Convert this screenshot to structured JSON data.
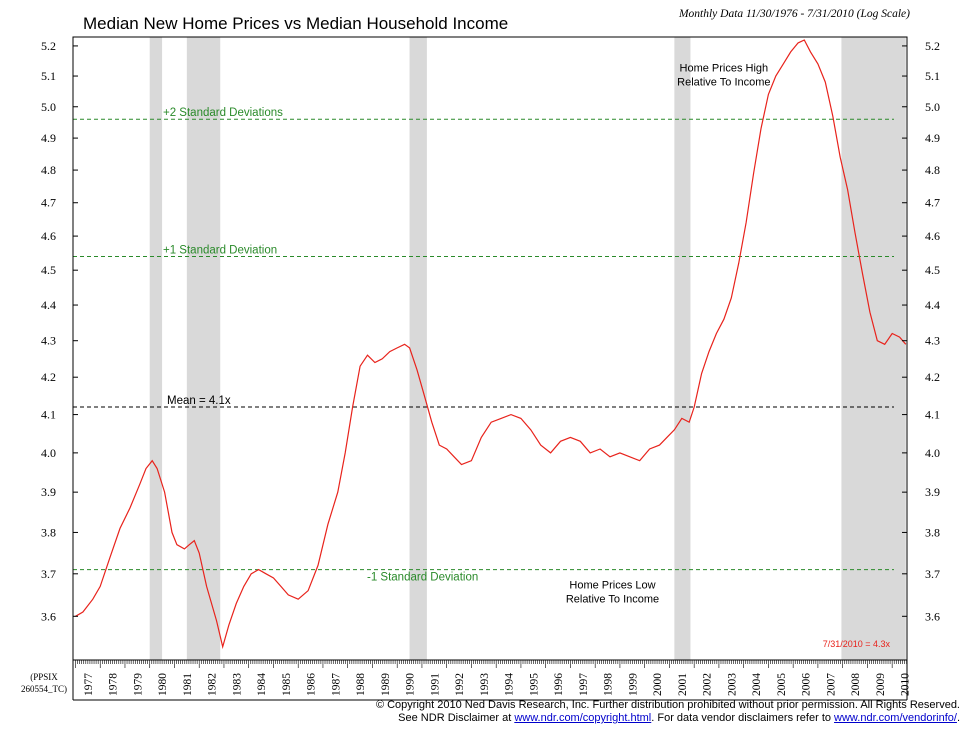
{
  "chart_data": {
    "type": "line",
    "title": "Median New Home Prices vs Median Household Income",
    "subtitle": "Monthly Data 11/30/1976 - 7/31/2010 (Log Scale)",
    "code_label": [
      "(PPSIX",
      "260554_TC)"
    ],
    "y_ticks": [
      "3.6",
      "3.7",
      "3.8",
      "3.9",
      "4.0",
      "4.1",
      "4.2",
      "4.3",
      "4.4",
      "4.5",
      "4.6",
      "4.7",
      "4.8",
      "4.9",
      "5.0",
      "5.1",
      "5.2"
    ],
    "x_ticks": [
      "1977",
      "1978",
      "1979",
      "1980",
      "1981",
      "1982",
      "1983",
      "1984",
      "1985",
      "1986",
      "1987",
      "1988",
      "1989",
      "1990",
      "1991",
      "1992",
      "1993",
      "1994",
      "1995",
      "1996",
      "1997",
      "1998",
      "1999",
      "2000",
      "2001",
      "2002",
      "2003",
      "2004",
      "2005",
      "2006",
      "2007",
      "2008",
      "2009",
      "2010"
    ],
    "ylim": [
      3.5,
      5.23
    ],
    "xlim": [
      1976.9,
      2010.6
    ],
    "scale_note": "log",
    "grid": false,
    "line_color": "#e8231c",
    "series": [
      {
        "x": [
          1977.0,
          1977.3,
          1977.7,
          1978.0,
          1978.4,
          1978.8,
          1979.2,
          1979.6,
          1979.85,
          1980.1,
          1980.3,
          1980.6,
          1980.9,
          1981.1,
          1981.4,
          1981.6,
          1981.8,
          1982.0,
          1982.3,
          1982.7,
          1982.95,
          1983.2,
          1983.5,
          1983.8,
          1984.1,
          1984.4,
          1984.7,
          1985.0,
          1985.3,
          1985.6,
          1986.0,
          1986.4,
          1986.8,
          1987.2,
          1987.6,
          1987.9,
          1988.2,
          1988.5,
          1988.8,
          1989.1,
          1989.4,
          1989.7,
          1990.0,
          1990.3,
          1990.5,
          1990.8,
          1991.1,
          1991.4,
          1991.7,
          1992.0,
          1992.3,
          1992.6,
          1993.0,
          1993.4,
          1993.8,
          1994.2,
          1994.6,
          1995.0,
          1995.4,
          1995.8,
          1996.2,
          1996.6,
          1997.0,
          1997.4,
          1997.8,
          1998.2,
          1998.6,
          1999.0,
          1999.4,
          1999.8,
          2000.2,
          2000.6,
          2000.9,
          2001.2,
          2001.5,
          2001.8,
          2002.0,
          2002.3,
          2002.6,
          2002.9,
          2003.2,
          2003.5,
          2003.8,
          2004.1,
          2004.4,
          2004.7,
          2005.0,
          2005.3,
          2005.6,
          2005.9,
          2006.2,
          2006.45,
          2006.7,
          2007.0,
          2007.3,
          2007.6,
          2007.9,
          2008.2,
          2008.5,
          2008.8,
          2009.1,
          2009.4,
          2009.7,
          2010.0,
          2010.3,
          2010.55
        ],
        "values": [
          3.6,
          3.61,
          3.64,
          3.67,
          3.74,
          3.81,
          3.86,
          3.92,
          3.96,
          3.98,
          3.96,
          3.9,
          3.8,
          3.77,
          3.76,
          3.77,
          3.78,
          3.75,
          3.67,
          3.59,
          3.53,
          3.58,
          3.63,
          3.67,
          3.7,
          3.71,
          3.7,
          3.69,
          3.67,
          3.65,
          3.64,
          3.66,
          3.72,
          3.82,
          3.9,
          4.0,
          4.12,
          4.23,
          4.26,
          4.24,
          4.25,
          4.27,
          4.28,
          4.29,
          4.28,
          4.22,
          4.15,
          4.08,
          4.02,
          4.01,
          3.99,
          3.97,
          3.98,
          4.04,
          4.08,
          4.09,
          4.1,
          4.09,
          4.06,
          4.02,
          4.0,
          4.03,
          4.04,
          4.03,
          4.0,
          4.01,
          3.99,
          4.0,
          3.99,
          3.98,
          4.01,
          4.02,
          4.04,
          4.06,
          4.09,
          4.08,
          4.12,
          4.21,
          4.27,
          4.32,
          4.36,
          4.42,
          4.52,
          4.64,
          4.79,
          4.93,
          5.04,
          5.1,
          5.14,
          5.18,
          5.21,
          5.22,
          5.18,
          5.14,
          5.08,
          4.97,
          4.84,
          4.74,
          4.61,
          4.49,
          4.38,
          4.3,
          4.29,
          4.32,
          4.31,
          4.29
        ]
      }
    ],
    "reference_lines": [
      {
        "label": "+2 Standard Deviations",
        "value": 4.96,
        "color": "#2a8a2a"
      },
      {
        "label": "+1 Standard Deviation",
        "value": 4.54,
        "color": "#2a8a2a"
      },
      {
        "label": "Mean = 4.1x",
        "value": 4.12,
        "color": "#000000"
      },
      {
        "label": "-1 Standard Deviation",
        "value": 3.71,
        "color": "#2a8a2a"
      }
    ],
    "recessions": [
      [
        1980.0,
        1980.5
      ],
      [
        1981.5,
        1982.85
      ],
      [
        1990.5,
        1991.2
      ],
      [
        2001.2,
        2001.85
      ],
      [
        2007.95,
        2010.55
      ]
    ],
    "annotations": [
      {
        "lines": [
          "Home Prices High",
          "Relative To Income"
        ],
        "x": 2003.2,
        "y": 5.115
      },
      {
        "lines": [
          "Home Prices Low",
          "Relative To Income"
        ],
        "x": 1998.7,
        "y": 3.665
      }
    ],
    "end_label": "7/31/2010 = 4.3x",
    "end_label_color": "#e8231c"
  },
  "footer": {
    "line1": "© Copyright 2010 Ned Davis Research, Inc.  Further distribution prohibited without prior permission.  All Rights Reserved.",
    "line2_prefix": "See NDR Disclaimer at ",
    "link1": "www.ndr.com/copyright.html",
    "line2_middle": ". For data vendor disclaimers refer to ",
    "link2": "www.ndr.com/vendorinfo/",
    "line2_suffix": "."
  }
}
